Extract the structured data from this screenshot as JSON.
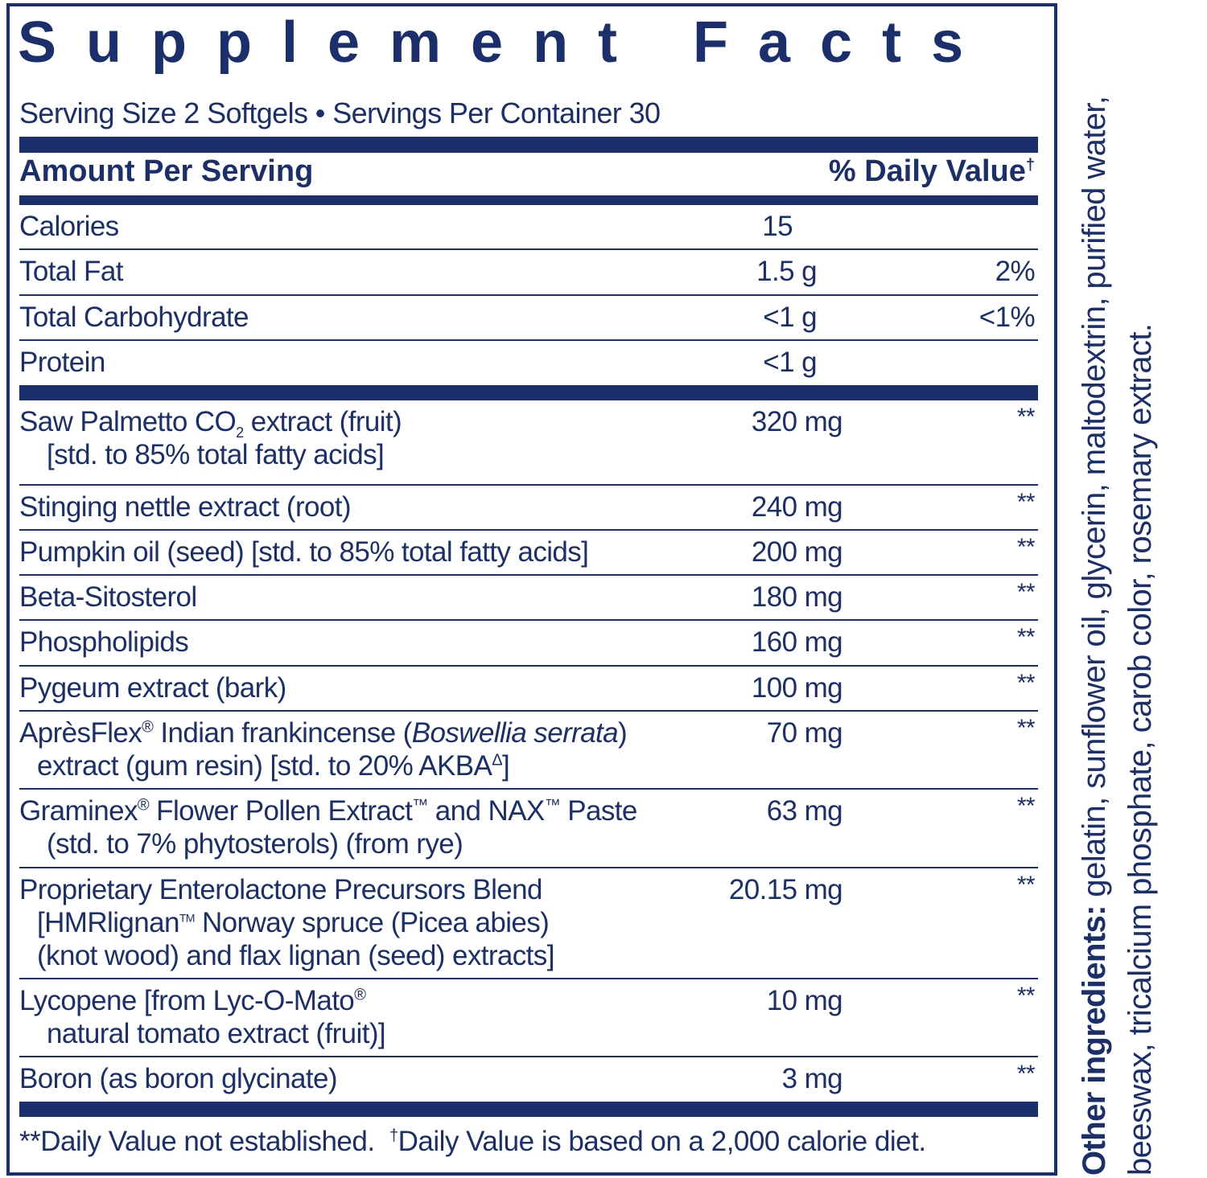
{
  "title": "Supplement Facts",
  "serving": "Serving Size 2 Softgels • Servings Per Container 30",
  "header": {
    "amount": "Amount Per Serving",
    "dv": "% Daily Value",
    "dv_mark": "†"
  },
  "nutrients": [
    {
      "name": "Calories",
      "amount": "15",
      "dv": ""
    },
    {
      "name": "Total Fat",
      "amount": "1.5 g",
      "dv": "2%"
    },
    {
      "name": "Total Carbohydrate",
      "amount": "<1 g",
      "dv": "<1%"
    },
    {
      "name": "Protein",
      "amount": "<1 g",
      "dv": ""
    }
  ],
  "ingredients": [
    {
      "l1a": "Saw Palmetto CO",
      "l1sub": "2",
      "l1b": " extract (fruit)",
      "l2": "[std. to 85% total fatty acids]",
      "amount": "320 mg",
      "dv": "**"
    },
    {
      "l1": "Stinging nettle extract (root)",
      "amount": "240 mg",
      "dv": "**"
    },
    {
      "l1": "Pumpkin oil (seed) [std. to 85% total fatty acids]",
      "amount": "200 mg",
      "dv": "**"
    },
    {
      "l1": "Beta-Sitosterol",
      "amount": "180 mg",
      "dv": "**"
    },
    {
      "l1": "Phospholipids",
      "amount": "160 mg",
      "dv": "**"
    },
    {
      "l1": "Pygeum extract (bark)",
      "amount": "100 mg",
      "dv": "**"
    },
    {
      "l1a": "AprèsFlex",
      "l1reg": "®",
      "l1b": " Indian frankincense (",
      "l1i": "Boswellia serrata",
      "l1c": ")",
      "l2": "extract (gum resin) [std. to 20% AKBA",
      "l2sup": "Δ",
      "l2end": "]",
      "amount": "70 mg",
      "dv": "**"
    },
    {
      "l1a": "Graminex",
      "l1reg": "®",
      "l1b": " Flower Pollen Extract",
      "l1tm": "™",
      "l1c": " and NAX",
      "l1tm2": "™",
      "l1d": " Paste",
      "l2": "(std. to 7% phytosterols) (from rye)",
      "amount": "63 mg",
      "dv": "**"
    },
    {
      "l1": "Proprietary Enterolactone Precursors Blend",
      "l2a": "[HMRlignan",
      "l2tm": "TM",
      "l2b": " Norway spruce (Picea abies)",
      "l3": "(knot wood) and flax lignan (seed) extracts]",
      "amount": "20.15 mg",
      "dv": "**"
    },
    {
      "l1a": "Lycopene [from Lyc-O-Mato",
      "l1reg": "®",
      "l2": "natural tomato extract (fruit)]",
      "amount": "10 mg",
      "dv": "**"
    },
    {
      "l1": "Boron (as boron glycinate)",
      "amount": "3 mg",
      "dv": "**"
    }
  ],
  "footnote": {
    "a": "**Daily Value not established.",
    "mark": "†",
    "b": "Daily Value is based on a 2,000 calorie diet."
  },
  "other": {
    "label": "Other ingredients:",
    "text": " gelatin, sunflower oil, glycerin, maltodextrin, purified water, beeswax, tricalcium phosphate, carob color, rosemary extract."
  },
  "colors": {
    "ink": "#1a2f6b"
  }
}
